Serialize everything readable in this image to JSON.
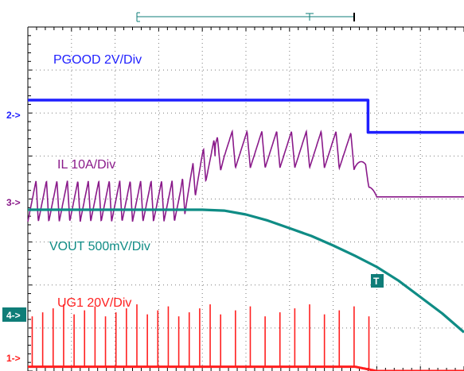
{
  "chart_data": {
    "type": "line",
    "title": "",
    "xlabel": "",
    "ylabel": "",
    "x_divisions": 10,
    "y_divisions": 8,
    "x": [
      0,
      0.5,
      1,
      1.5,
      2,
      2.5,
      3,
      3.5,
      4,
      4.5,
      5,
      5.5,
      6,
      6.5,
      7,
      7.5,
      8,
      8.5,
      9,
      9.5,
      10
    ],
    "series": [
      {
        "name": "PGOOD 2V/Div",
        "channel_marker": "2->",
        "color": "#1f1fff",
        "values": [
          6.3,
          6.3,
          6.3,
          6.3,
          6.3,
          6.3,
          6.3,
          6.3,
          6.3,
          6.3,
          6.3,
          6.3,
          6.3,
          6.3,
          6.3,
          6.3,
          5.55,
          5.55,
          5.55,
          5.55,
          5.55
        ]
      },
      {
        "name": "IL 10A/Div",
        "channel_marker": "3->",
        "color": "#8a1a8a",
        "waveform": "triangular ripple",
        "values": [
          3.95,
          3.95,
          3.95,
          3.95,
          3.95,
          3.95,
          3.95,
          3.95,
          4.75,
          5.15,
          5.15,
          5.15,
          5.15,
          5.15,
          5.15,
          5.1,
          4.05,
          4.05,
          4.05,
          4.05,
          4.05
        ],
        "ripple_peak_to_peak": [
          0.95,
          0.95,
          0.95,
          0.95,
          0.95,
          0.95,
          0.95,
          0.95,
          0.8,
          0.85,
          0.85,
          0.85,
          0.85,
          0.85,
          0.85,
          0.85,
          0,
          0,
          0,
          0,
          0
        ]
      },
      {
        "name": "VOUT 500mV/Div",
        "channel_marker": "T",
        "color": "#0f8c85",
        "values": [
          3.75,
          3.75,
          3.75,
          3.75,
          3.75,
          3.75,
          3.75,
          3.75,
          3.75,
          3.73,
          3.64,
          3.5,
          3.32,
          3.14,
          2.92,
          2.68,
          2.42,
          2.1,
          1.72,
          1.34,
          0.9
        ]
      },
      {
        "name": "UG1 20V/Div",
        "channel_marker": "1->",
        "color": "#ff1f1f",
        "waveform": "switching pulses",
        "values": [
          0.1,
          0.1,
          0.1,
          0.1,
          0.1,
          0.1,
          0.1,
          0.1,
          0.1,
          0.1,
          0.1,
          0.1,
          0.1,
          0.1,
          0.1,
          0.1,
          0,
          0,
          0,
          0,
          0
        ],
        "pulse_high": 1.55
      }
    ],
    "ch4_marker": "4->",
    "grid": "dotted",
    "legend": "inline trace labels"
  }
}
